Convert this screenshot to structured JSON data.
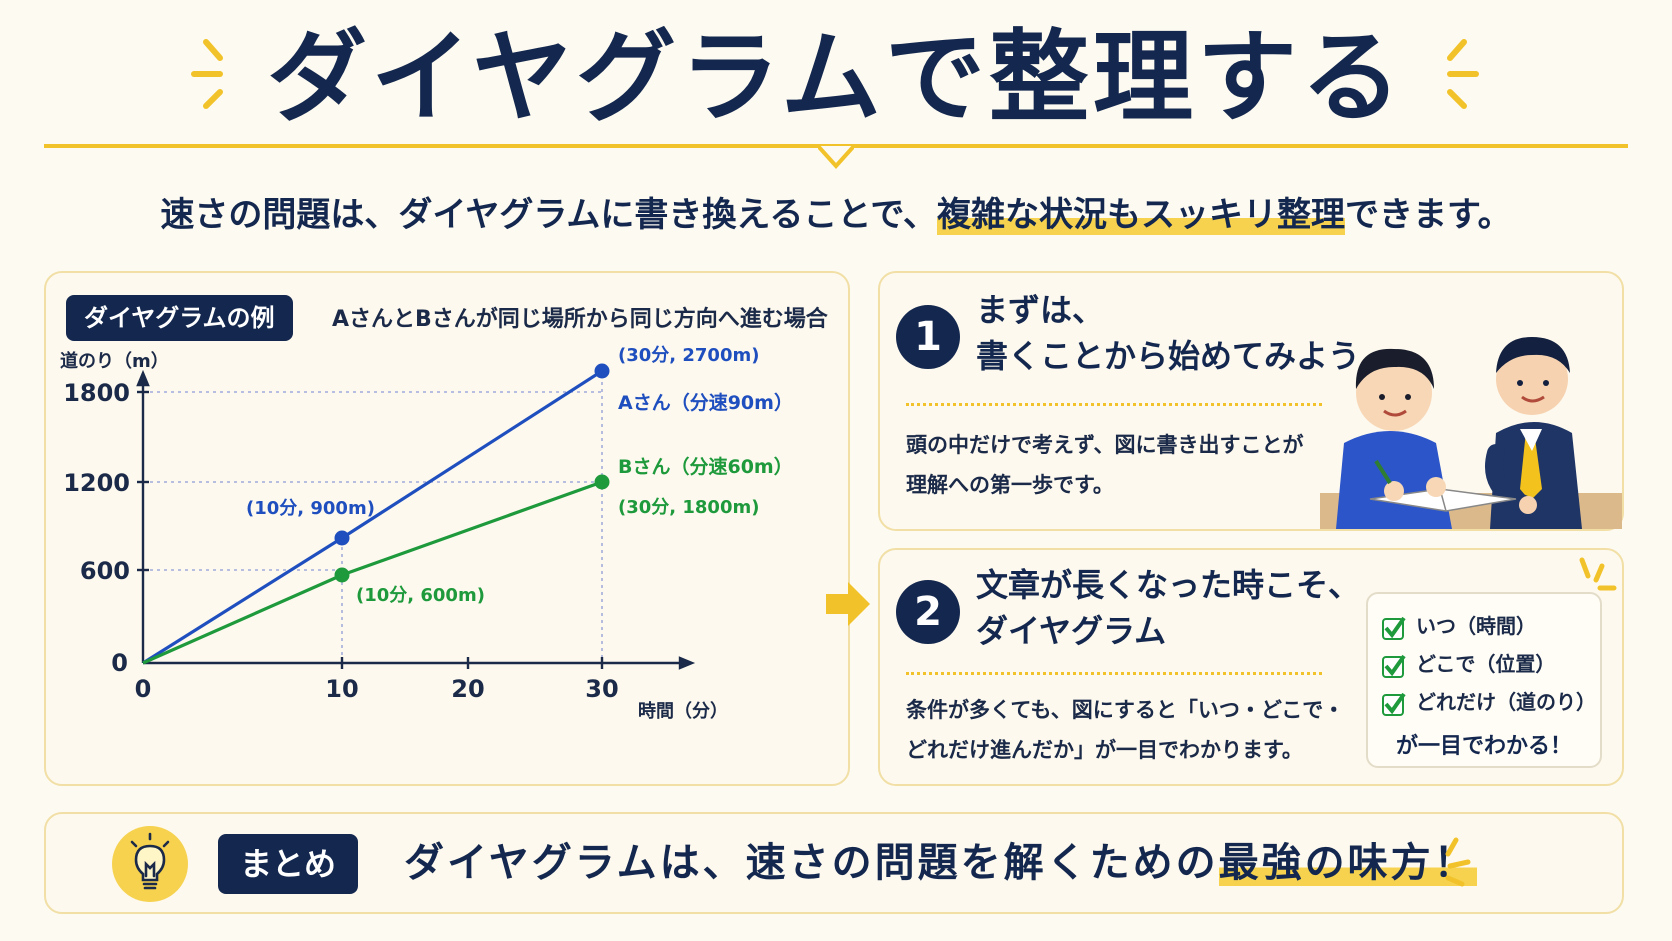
{
  "title": "ダイヤグラムで整理する",
  "subtitle": {
    "before": "速さの問題は、ダイヤグラムに書き換えることで、",
    "highlight": "複雑な状況もスッキリ整理",
    "after": "できます。"
  },
  "chart_panel": {
    "badge": "ダイヤグラムの例",
    "caption": "AさんとBさんが同じ場所から同じ方向へ進む場合"
  },
  "chart_data": {
    "type": "line",
    "ylabel": "道のり（m）",
    "xlabel": "時間（分）",
    "y_ticks": [
      "1800",
      "1200",
      "600",
      "0"
    ],
    "x_ticks": [
      "0",
      "10",
      "20",
      "30"
    ],
    "series": [
      {
        "name": "Aさん（分速90m）",
        "color": "#1f4fbf",
        "points": [
          {
            "x": 0,
            "y": 0
          },
          {
            "x": 10,
            "y": 900
          },
          {
            "x": 30,
            "y": 2700
          }
        ],
        "labels": [
          "(10分, 900m)",
          "(30分, 2700m)"
        ]
      },
      {
        "name": "Bさん（分速60m）",
        "color": "#1e9a3c",
        "points": [
          {
            "x": 0,
            "y": 0
          },
          {
            "x": 10,
            "y": 600
          },
          {
            "x": 30,
            "y": 1800
          }
        ],
        "labels": [
          "(10分, 600m)",
          "(30分, 1800m)"
        ]
      }
    ]
  },
  "step1": {
    "number": "1",
    "title_line1": "まずは、",
    "title_line2": "書くことから始めてみよう",
    "body_line1": "頭の中だけで考えず、図に書き出すことが",
    "body_line2": "理解への第一歩です。"
  },
  "step2": {
    "number": "2",
    "title_line1": "文章が長くなった時こそ、",
    "title_line2": "ダイヤグラム",
    "body_line1": "条件が多くても、図にすると「いつ・どこで・",
    "body_line2": "どれだけ進んだか」が一目でわかります。",
    "checklist": [
      "いつ（時間）",
      "どこで（位置）",
      "どれだけ（道のり）"
    ],
    "checklist_footer": "が一目でわかる！"
  },
  "summary": {
    "badge": "まとめ",
    "text_before": "ダイヤグラムは、速さの問題を解くための",
    "text_highlight": "最強の味方！"
  },
  "colors": {
    "navy": "#14284f",
    "accent_yellow": "#f2c22a",
    "series_a": "#1f4fbf",
    "series_b": "#1e9a3c"
  }
}
